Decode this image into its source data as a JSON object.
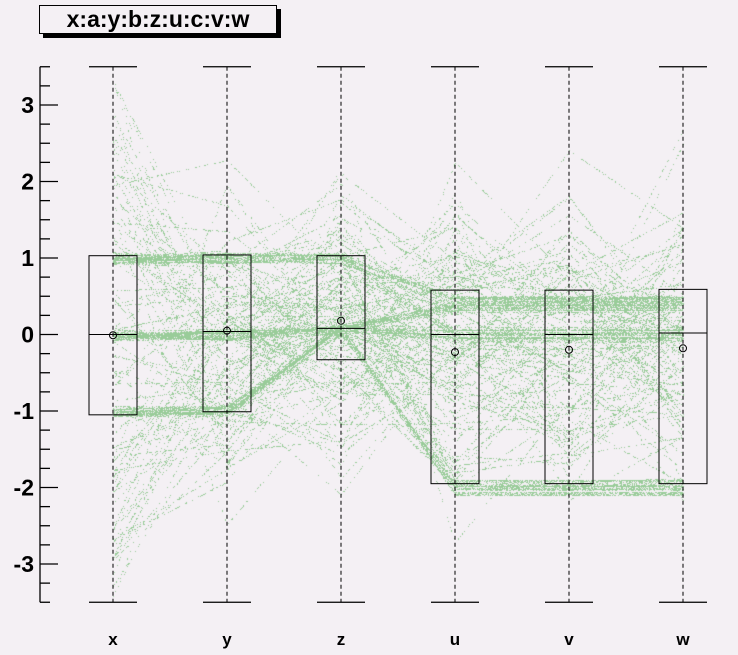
{
  "chart_data": {
    "type": "parallel-coordinates-boxplot",
    "title": "x:a:y:b:z:u:c:v:w",
    "axes": [
      "x",
      "y",
      "z",
      "u",
      "v",
      "w"
    ],
    "ylim": [
      -3.5,
      3.5
    ],
    "yticks": [
      "3",
      "2",
      "1",
      "0",
      "-1",
      "-2",
      "-3"
    ],
    "ytick_values": [
      3,
      2,
      1,
      0,
      -1,
      -2,
      -3
    ],
    "grid": false,
    "point_color": "#99cc99",
    "background": "#f4f0f4",
    "boxes": [
      {
        "axis": "x",
        "q1": -1.05,
        "median": 0.0,
        "q3": 1.03,
        "mean": -0.01,
        "min": -3.5,
        "max": 3.5
      },
      {
        "axis": "y",
        "q1": -1.01,
        "median": 0.04,
        "q3": 1.04,
        "mean": 0.05,
        "min": -3.5,
        "max": 3.5
      },
      {
        "axis": "z",
        "q1": -0.33,
        "median": 0.08,
        "q3": 1.03,
        "mean": 0.18,
        "min": -3.5,
        "max": 3.5
      },
      {
        "axis": "u",
        "q1": -1.95,
        "median": 0.0,
        "q3": 0.58,
        "mean": -0.23,
        "min": -3.5,
        "max": 3.5
      },
      {
        "axis": "v",
        "q1": -1.95,
        "median": 0.0,
        "q3": 0.58,
        "mean": -0.2,
        "min": -3.5,
        "max": 3.5
      },
      {
        "axis": "w",
        "q1": -1.95,
        "median": 0.02,
        "q3": 0.59,
        "mean": -0.18,
        "min": -3.5,
        "max": 3.5
      }
    ]
  }
}
